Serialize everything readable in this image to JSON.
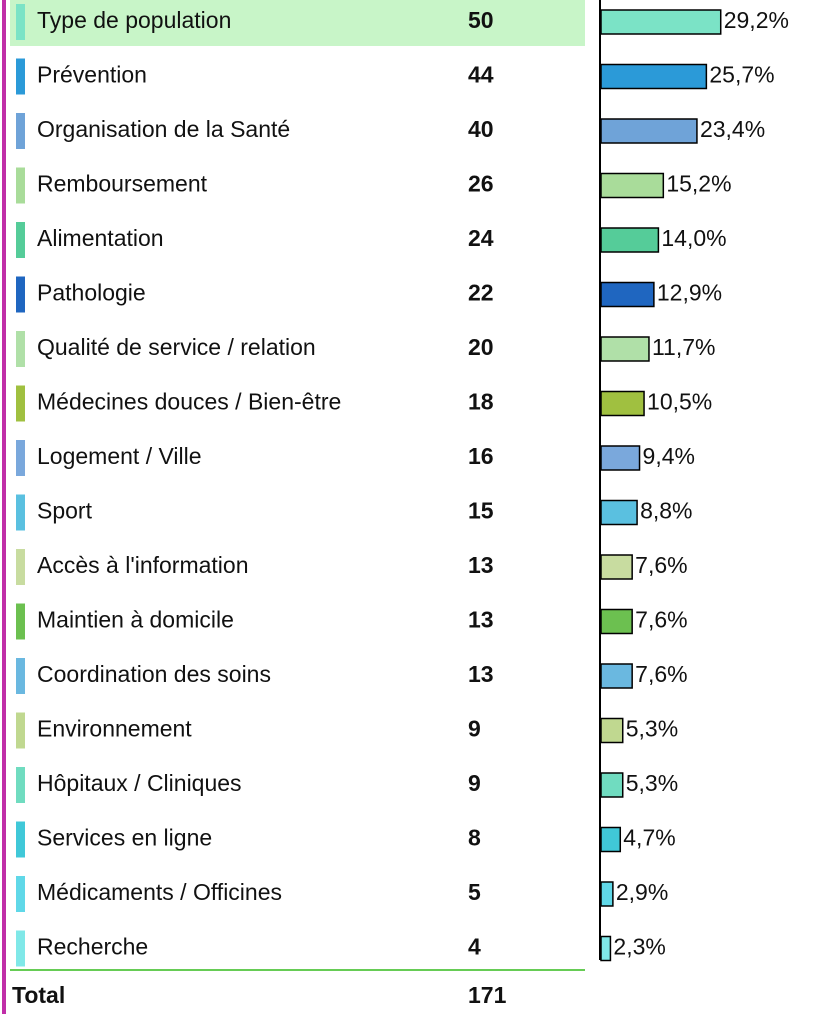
{
  "chart_data": {
    "type": "hbar",
    "categories": [
      "Type de population",
      "Prévention",
      "Organisation de la Santé",
      "Remboursement",
      "Alimentation",
      "Pathologie",
      "Qualité de service / relation",
      "Médecines douces / Bien-être",
      "Logement / Ville",
      "Sport",
      "Accès à l'information",
      "Maintien à domicile",
      "Coordination des soins",
      "Environnement",
      "Hôpitaux / Cliniques",
      "Services en ligne",
      "Médicaments / Officines",
      "Recherche"
    ],
    "counts": [
      50,
      44,
      40,
      26,
      24,
      22,
      20,
      18,
      16,
      15,
      13,
      13,
      13,
      9,
      9,
      8,
      5,
      4
    ],
    "values": [
      29.2,
      25.7,
      23.4,
      15.2,
      14.0,
      12.9,
      11.7,
      10.5,
      9.4,
      8.8,
      7.6,
      7.6,
      7.6,
      5.3,
      5.3,
      4.7,
      2.9,
      2.3
    ],
    "value_labels": [
      "29,2%",
      "25,7%",
      "23,4%",
      "15,2%",
      "14,0%",
      "12,9%",
      "11,7%",
      "10,5%",
      "9,4%",
      "8,8%",
      "7,6%",
      "7,6%",
      "7,6%",
      "5,3%",
      "5,3%",
      "4,7%",
      "2,9%",
      "2,3%"
    ],
    "colors": [
      "#7be3c6",
      "#2b9ad8",
      "#6fa3d8",
      "#a9dc9a",
      "#55cc99",
      "#1f66c0",
      "#b0e0a8",
      "#a0c040",
      "#7aa8dc",
      "#5ac0e0",
      "#c8dca0",
      "#6cc050",
      "#6ab8e0",
      "#c0d890",
      "#70dcc0",
      "#40c8d8",
      "#60d8e8",
      "#80e8e8"
    ],
    "highlighted_row": 0,
    "total_label": "Total",
    "total": 171
  }
}
